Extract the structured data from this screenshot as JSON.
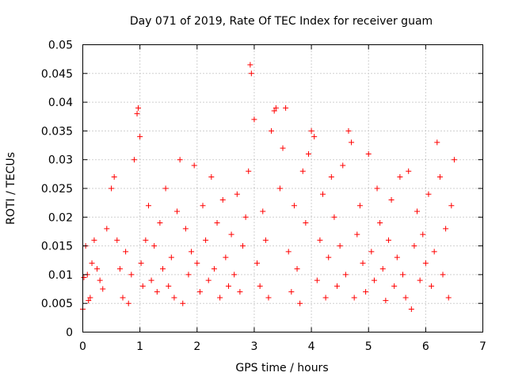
{
  "chart_data": {
    "type": "scatter",
    "title": "Day 071 of 2019, Rate Of TEC Index for receiver guam",
    "xlabel": "GPS time / hours",
    "ylabel": "ROTI / TECUs",
    "xlim": [
      0,
      7
    ],
    "ylim": [
      0,
      0.05
    ],
    "xticks": [
      "0",
      "1",
      "2",
      "3",
      "4",
      "5",
      "6",
      "7"
    ],
    "yticks": [
      "0",
      "0.005",
      "0.01",
      "0.015",
      "0.02",
      "0.025",
      "0.03",
      "0.035",
      "0.04",
      "0.045",
      "0.05"
    ],
    "grid": true,
    "marker": "+",
    "color": "#ff0000",
    "series": [
      {
        "name": "ROTI",
        "x": [
          0.0,
          0.02,
          0.05,
          0.08,
          0.1,
          0.13,
          0.16,
          0.2,
          0.25,
          0.3,
          0.35,
          0.42,
          0.5,
          0.55,
          0.6,
          0.65,
          0.7,
          0.75,
          0.8,
          0.85,
          0.9,
          0.95,
          0.97,
          1.0,
          1.02,
          1.05,
          1.1,
          1.15,
          1.2,
          1.25,
          1.3,
          1.35,
          1.4,
          1.45,
          1.5,
          1.55,
          1.6,
          1.65,
          1.7,
          1.75,
          1.8,
          1.85,
          1.9,
          1.95,
          2.0,
          2.05,
          2.1,
          2.15,
          2.2,
          2.25,
          2.3,
          2.35,
          2.4,
          2.45,
          2.5,
          2.55,
          2.6,
          2.65,
          2.7,
          2.75,
          2.8,
          2.85,
          2.9,
          2.93,
          2.95,
          3.0,
          3.05,
          3.1,
          3.15,
          3.2,
          3.25,
          3.3,
          3.35,
          3.38,
          3.45,
          3.5,
          3.55,
          3.6,
          3.65,
          3.7,
          3.75,
          3.8,
          3.85,
          3.9,
          3.95,
          4.0,
          4.05,
          4.1,
          4.15,
          4.2,
          4.25,
          4.3,
          4.35,
          4.4,
          4.45,
          4.5,
          4.55,
          4.6,
          4.65,
          4.7,
          4.75,
          4.8,
          4.85,
          4.9,
          4.95,
          5.0,
          5.05,
          5.1,
          5.15,
          5.2,
          5.25,
          5.3,
          5.35,
          5.4,
          5.45,
          5.5,
          5.55,
          5.6,
          5.65,
          5.7,
          5.75,
          5.8,
          5.85,
          5.9,
          5.95,
          6.0,
          6.05,
          6.1,
          6.15,
          6.2,
          6.25,
          6.3,
          6.35,
          6.4,
          6.45,
          6.5
        ],
        "y": [
          0.004,
          0.0095,
          0.015,
          0.01,
          0.0055,
          0.006,
          0.012,
          0.016,
          0.011,
          0.009,
          0.0075,
          0.018,
          0.025,
          0.027,
          0.016,
          0.011,
          0.006,
          0.014,
          0.005,
          0.01,
          0.03,
          0.038,
          0.039,
          0.034,
          0.012,
          0.008,
          0.016,
          0.022,
          0.009,
          0.015,
          0.007,
          0.019,
          0.011,
          0.025,
          0.008,
          0.013,
          0.006,
          0.021,
          0.03,
          0.005,
          0.018,
          0.01,
          0.014,
          0.029,
          0.012,
          0.007,
          0.022,
          0.016,
          0.009,
          0.027,
          0.011,
          0.019,
          0.006,
          0.023,
          0.013,
          0.008,
          0.017,
          0.01,
          0.024,
          0.007,
          0.015,
          0.02,
          0.028,
          0.0465,
          0.045,
          0.037,
          0.012,
          0.008,
          0.021,
          0.016,
          0.006,
          0.035,
          0.0385,
          0.039,
          0.025,
          0.032,
          0.039,
          0.014,
          0.007,
          0.022,
          0.011,
          0.005,
          0.028,
          0.019,
          0.031,
          0.035,
          0.034,
          0.009,
          0.016,
          0.024,
          0.006,
          0.013,
          0.027,
          0.02,
          0.008,
          0.015,
          0.029,
          0.01,
          0.035,
          0.033,
          0.006,
          0.017,
          0.022,
          0.012,
          0.007,
          0.031,
          0.014,
          0.009,
          0.025,
          0.019,
          0.011,
          0.0055,
          0.016,
          0.023,
          0.008,
          0.013,
          0.027,
          0.01,
          0.006,
          0.028,
          0.004,
          0.015,
          0.021,
          0.009,
          0.017,
          0.012,
          0.024,
          0.008,
          0.014,
          0.033,
          0.027,
          0.01,
          0.018,
          0.006,
          0.022,
          0.03
        ]
      }
    ]
  }
}
